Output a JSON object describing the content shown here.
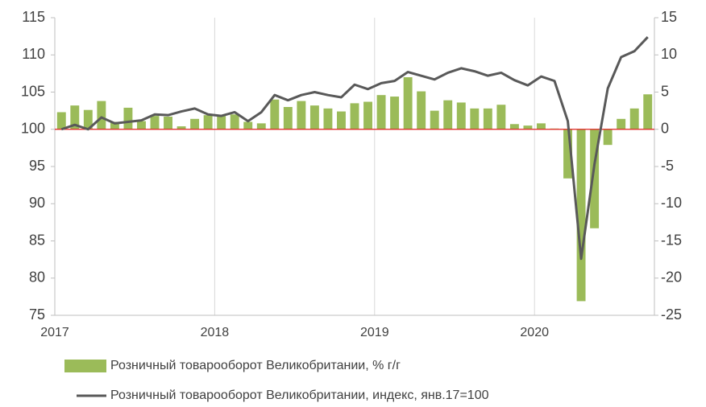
{
  "chart_data": {
    "type": "combo",
    "categories": [
      "2017",
      null,
      null,
      null,
      null,
      null,
      null,
      null,
      null,
      null,
      null,
      null,
      "2018",
      null,
      null,
      null,
      null,
      null,
      null,
      null,
      null,
      null,
      null,
      null,
      "2019",
      null,
      null,
      null,
      null,
      null,
      null,
      null,
      null,
      null,
      null,
      null,
      "2020",
      null,
      null,
      null,
      null,
      null,
      null,
      null,
      null
    ],
    "series": [
      {
        "name": "Розничный товарооборот Великобритании, % г/г",
        "type": "bar",
        "axis": "y2",
        "color": "#9bbb59",
        "values": [
          2.3,
          3.2,
          2.6,
          3.8,
          1.0,
          2.9,
          1.1,
          1.8,
          1.7,
          0.4,
          1.4,
          1.9,
          1.9,
          2.0,
          1.0,
          0.8,
          4.0,
          3.0,
          3.8,
          3.2,
          2.8,
          2.4,
          3.5,
          3.7,
          4.6,
          4.4,
          7.0,
          5.1,
          2.5,
          3.9,
          3.6,
          2.8,
          2.8,
          3.3,
          0.7,
          0.5,
          0.8,
          0.1,
          -6.6,
          -23.1,
          -13.3,
          -2.1,
          1.4,
          2.8,
          4.7
        ]
      },
      {
        "name": "Розничный товарооборот Великобритании, индекс, янв.17=100",
        "type": "line",
        "axis": "y",
        "color": "#595959",
        "values": [
          100.0,
          100.6,
          100.0,
          101.6,
          100.8,
          101.0,
          101.2,
          102.0,
          101.9,
          102.4,
          102.8,
          102.0,
          101.8,
          102.3,
          101.1,
          102.3,
          104.6,
          103.9,
          104.6,
          105.0,
          104.6,
          104.3,
          106.0,
          105.4,
          106.2,
          106.5,
          107.7,
          107.2,
          106.7,
          107.6,
          108.2,
          107.8,
          107.2,
          107.6,
          106.6,
          105.9,
          107.1,
          106.5,
          101.1,
          82.6,
          95.3,
          105.5,
          109.7,
          110.5,
          112.4
        ]
      }
    ],
    "ylim": [
      75,
      115
    ],
    "yticks": [
      75,
      80,
      85,
      90,
      95,
      100,
      105,
      110,
      115
    ],
    "y2lim": [
      -25,
      15
    ],
    "y2ticks": [
      -25,
      -20,
      -15,
      -10,
      -5,
      0,
      5,
      10,
      15
    ],
    "grid": true
  }
}
